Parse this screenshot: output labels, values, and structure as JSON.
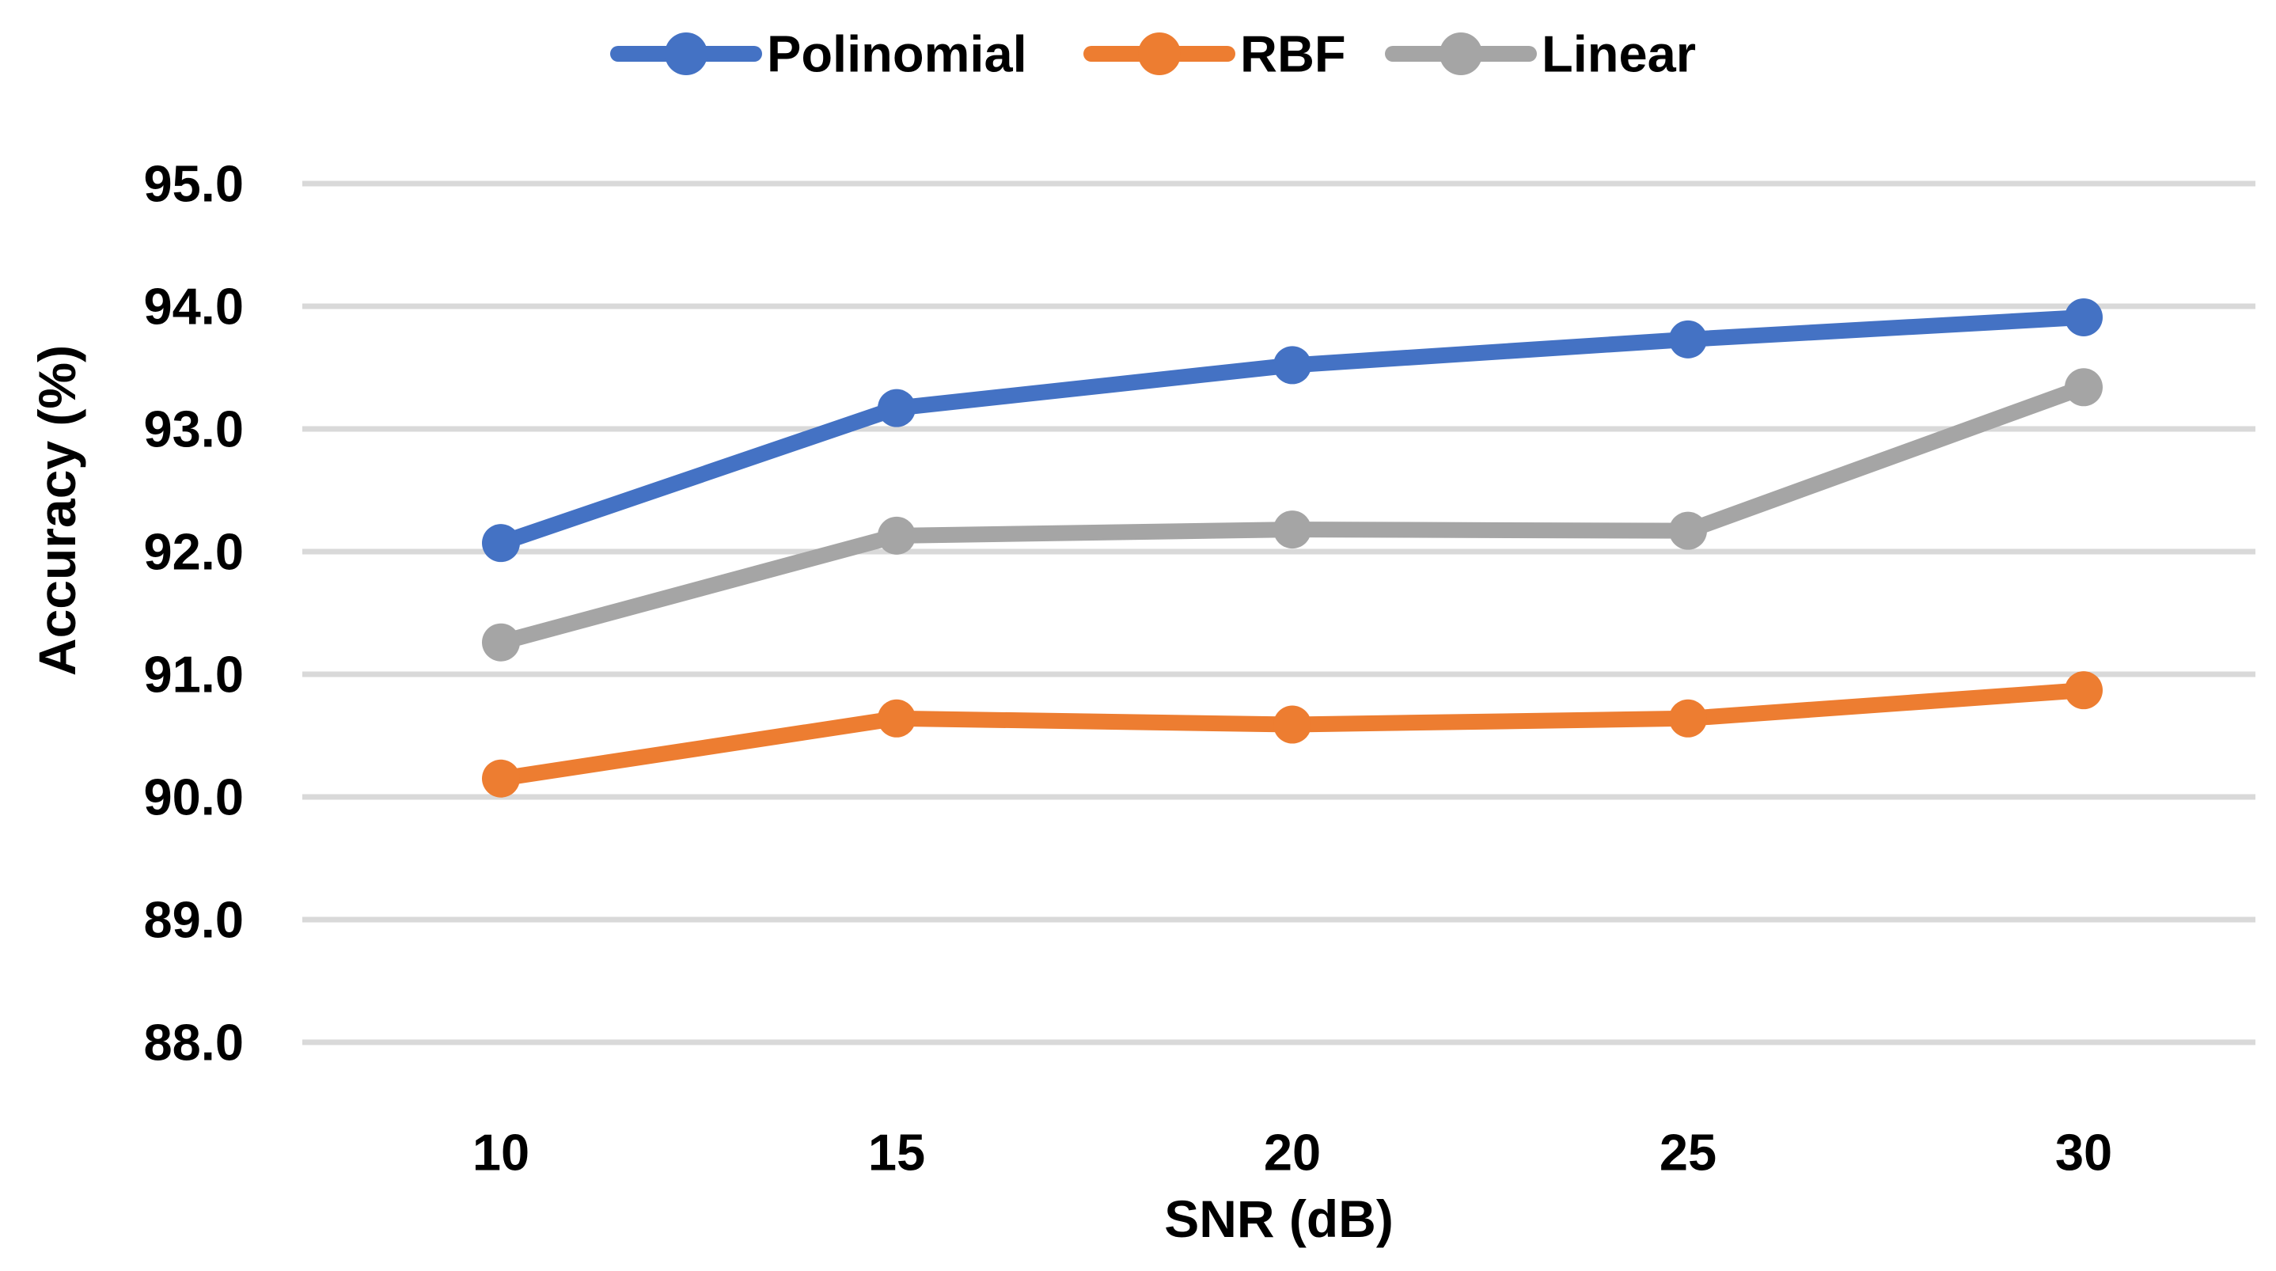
{
  "chart_data": {
    "type": "line",
    "title": "",
    "xlabel": "SNR (dB)",
    "ylabel": "Accuracy (%)",
    "x": [
      10,
      15,
      20,
      25,
      30
    ],
    "series": [
      {
        "name": "Polinomial",
        "color": "#4472C4",
        "values": [
          92.07,
          93.17,
          93.52,
          93.73,
          93.91
        ]
      },
      {
        "name": "RBF",
        "color": "#ED7D31",
        "values": [
          90.15,
          90.64,
          90.59,
          90.64,
          90.87
        ]
      },
      {
        "name": "Linear",
        "color": "#A5A5A5",
        "values": [
          91.26,
          92.13,
          92.18,
          92.17,
          93.34
        ]
      }
    ],
    "ylim": [
      88.0,
      95.0
    ],
    "ytick_step": 1.0,
    "ytick_labels": [
      "95.0",
      "94.0",
      "93.0",
      "92.0",
      "91.0",
      "90.0",
      "89.0",
      "88.0"
    ],
    "xtick_labels": [
      "10",
      "15",
      "20",
      "25",
      "30"
    ],
    "grid": "horizontal",
    "gridline_color": "#D9D9D9",
    "legend_position": "top",
    "text_color": "#000000",
    "background_color": "#FFFFFF"
  }
}
